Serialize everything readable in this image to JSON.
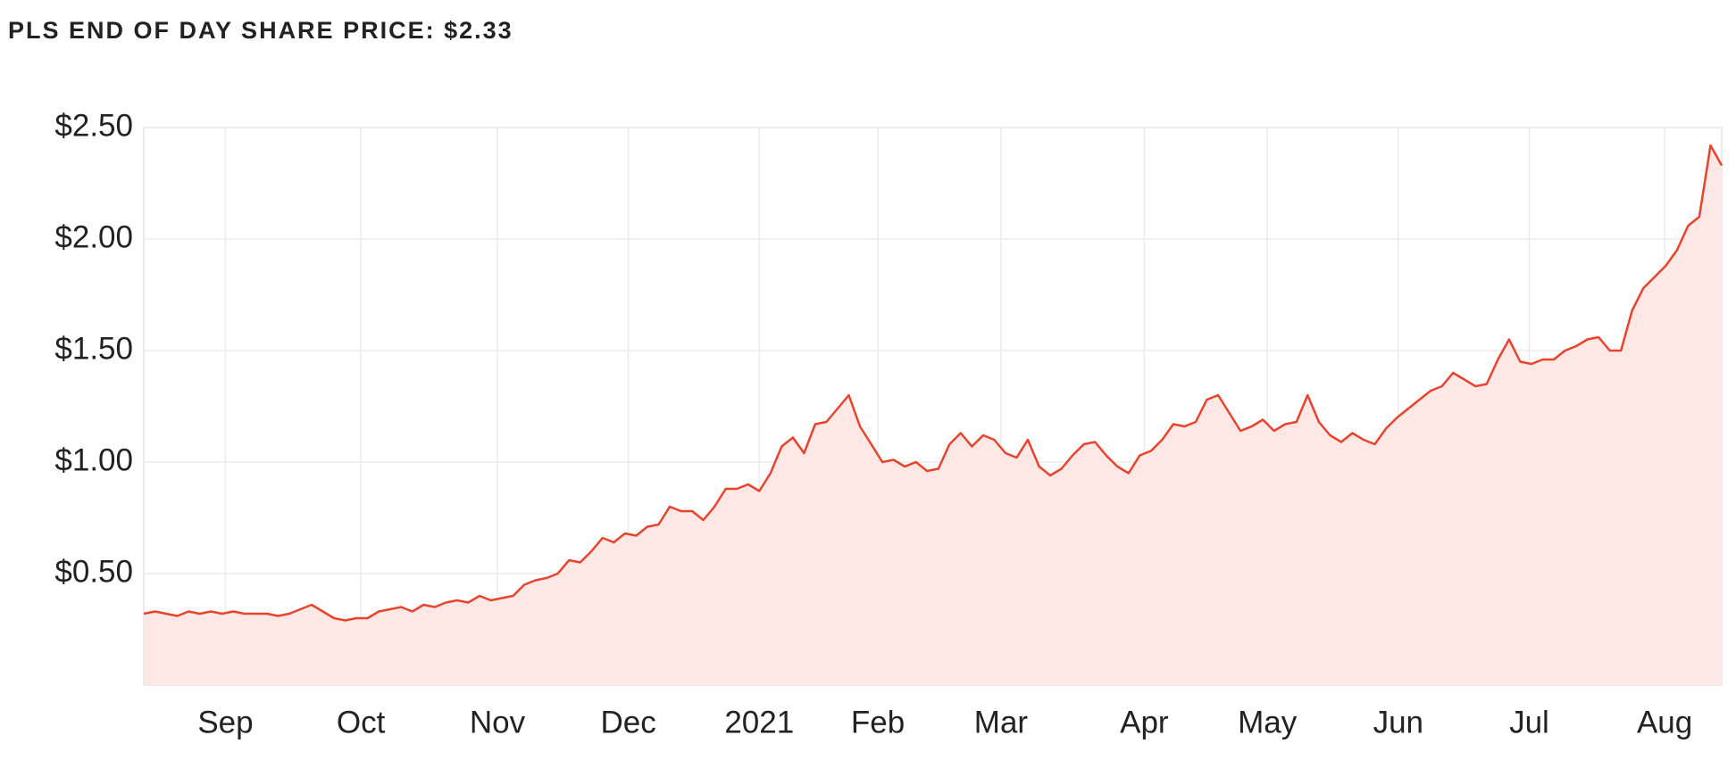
{
  "chart_data": {
    "type": "area",
    "title": "PLS END OF DAY SHARE PRICE: $2.33",
    "values": [
      0.32,
      0.33,
      0.32,
      0.31,
      0.33,
      0.32,
      0.33,
      0.32,
      0.33,
      0.32,
      0.32,
      0.32,
      0.31,
      0.32,
      0.34,
      0.36,
      0.33,
      0.3,
      0.29,
      0.3,
      0.3,
      0.33,
      0.34,
      0.35,
      0.33,
      0.36,
      0.35,
      0.37,
      0.38,
      0.37,
      0.4,
      0.38,
      0.39,
      0.4,
      0.45,
      0.47,
      0.48,
      0.5,
      0.56,
      0.55,
      0.6,
      0.66,
      0.64,
      0.68,
      0.67,
      0.71,
      0.72,
      0.8,
      0.78,
      0.78,
      0.74,
      0.8,
      0.88,
      0.88,
      0.9,
      0.87,
      0.95,
      1.07,
      1.11,
      1.04,
      1.17,
      1.18,
      1.24,
      1.3,
      1.16,
      1.08,
      1.0,
      1.01,
      0.98,
      1.0,
      0.96,
      0.97,
      1.08,
      1.13,
      1.07,
      1.12,
      1.1,
      1.04,
      1.02,
      1.1,
      0.98,
      0.94,
      0.97,
      1.03,
      1.08,
      1.09,
      1.03,
      0.98,
      0.95,
      1.03,
      1.05,
      1.1,
      1.17,
      1.16,
      1.18,
      1.28,
      1.3,
      1.22,
      1.14,
      1.16,
      1.19,
      1.14,
      1.17,
      1.18,
      1.3,
      1.18,
      1.12,
      1.09,
      1.13,
      1.1,
      1.08,
      1.15,
      1.2,
      1.24,
      1.28,
      1.32,
      1.34,
      1.4,
      1.37,
      1.34,
      1.35,
      1.46,
      1.55,
      1.45,
      1.44,
      1.46,
      1.46,
      1.5,
      1.52,
      1.55,
      1.56,
      1.5,
      1.5,
      1.68,
      1.78,
      1.83,
      1.88,
      1.95,
      2.06,
      2.1,
      2.42,
      2.33
    ],
    "color": "#e8432d",
    "fill_color": "#fde8e5",
    "xlim": [
      0,
      141
    ],
    "xticks": [
      {
        "value": 7.3,
        "label": "Sep"
      },
      {
        "value": 19.4,
        "label": "Oct"
      },
      {
        "value": 31.6,
        "label": "Nov"
      },
      {
        "value": 43.3,
        "label": "Dec"
      },
      {
        "value": 55.0,
        "label": "2021"
      },
      {
        "value": 65.6,
        "label": "Feb"
      },
      {
        "value": 76.6,
        "label": "Mar"
      },
      {
        "value": 89.4,
        "label": "Apr"
      },
      {
        "value": 100.4,
        "label": "May"
      },
      {
        "value": 112.1,
        "label": "Jun"
      },
      {
        "value": 123.8,
        "label": "Jul"
      },
      {
        "value": 135.9,
        "label": "Aug"
      }
    ],
    "ylim": [
      0,
      2.5
    ],
    "yticks": [
      {
        "value": 0.5,
        "label": "$0.50"
      },
      {
        "value": 1.0,
        "label": "$1.00"
      },
      {
        "value": 1.5,
        "label": "$1.50"
      },
      {
        "value": 2.0,
        "label": "$2.00"
      },
      {
        "value": 2.5,
        "label": "$2.50"
      }
    ],
    "grid": true
  }
}
